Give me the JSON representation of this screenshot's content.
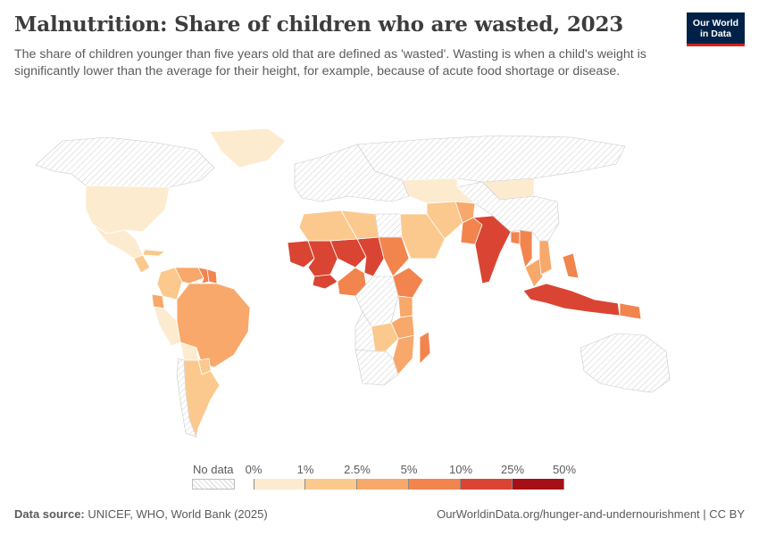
{
  "header": {
    "title": "Malnutrition: Share of children who are wasted, 2023",
    "subtitle": "The share of children younger than five years old that are defined as 'wasted'. Wasting is when a child's weight is significantly lower than the average for their height, for example, because of acute food shortage or disease.",
    "logo_line1": "Our World",
    "logo_line2": "in Data",
    "logo_color": "#002147",
    "logo_accent": "#ce261e"
  },
  "legend": {
    "no_data_label": "No data",
    "tick_labels": [
      "0%",
      "1%",
      "2.5%",
      "5%",
      "10%",
      "25%",
      "50%"
    ],
    "bin_colors": [
      "#fdebd0",
      "#fbc98d",
      "#f7a86a",
      "#f2844e",
      "#d94532",
      "#a50f15"
    ]
  },
  "footer": {
    "source_label": "Data source:",
    "source_text": " UNICEF, WHO, World Bank (2025)",
    "url_text": "OurWorldinData.org/hunger-and-undernourishment | CC BY"
  },
  "chart_data": {
    "type": "choropleth",
    "title": "Malnutrition: Share of children who are wasted, 2023",
    "year": 2023,
    "unit": "%",
    "scale_bins": [
      0,
      1,
      2.5,
      5,
      10,
      25,
      50
    ],
    "regions": [
      {
        "name": "Canada",
        "bin": null
      },
      {
        "name": "United States",
        "bin": 0
      },
      {
        "name": "Mexico",
        "bin": 0
      },
      {
        "name": "Greenland",
        "bin": 0
      },
      {
        "name": "Cuba",
        "bin": 1
      },
      {
        "name": "Guatemala",
        "bin": 1
      },
      {
        "name": "Colombia",
        "bin": 1
      },
      {
        "name": "Venezuela",
        "bin": 2
      },
      {
        "name": "Guyana",
        "bin": 3
      },
      {
        "name": "Suriname",
        "bin": 3
      },
      {
        "name": "Ecuador",
        "bin": 2
      },
      {
        "name": "Peru",
        "bin": 0
      },
      {
        "name": "Brazil",
        "bin": 2
      },
      {
        "name": "Bolivia",
        "bin": 0
      },
      {
        "name": "Paraguay",
        "bin": 1
      },
      {
        "name": "Argentina",
        "bin": 1
      },
      {
        "name": "Chile",
        "bin": null
      },
      {
        "name": "Mauritania",
        "bin": 4
      },
      {
        "name": "Mali",
        "bin": 4
      },
      {
        "name": "Niger",
        "bin": 4
      },
      {
        "name": "Chad",
        "bin": 4
      },
      {
        "name": "Burkina Faso",
        "bin": 4
      },
      {
        "name": "Nigeria",
        "bin": 3
      },
      {
        "name": "Algeria",
        "bin": 1
      },
      {
        "name": "Libya",
        "bin": 1
      },
      {
        "name": "Sudan",
        "bin": 3
      },
      {
        "name": "Egypt",
        "bin": null
      },
      {
        "name": "Ethiopia",
        "bin": 3
      },
      {
        "name": "Kenya",
        "bin": 2
      },
      {
        "name": "Tanzania",
        "bin": 2
      },
      {
        "name": "DR Congo",
        "bin": null
      },
      {
        "name": "Angola",
        "bin": null
      },
      {
        "name": "Mozambique",
        "bin": 2
      },
      {
        "name": "Zambia",
        "bin": 1
      },
      {
        "name": "South Africa",
        "bin": null
      },
      {
        "name": "Madagascar",
        "bin": 3
      },
      {
        "name": "Saudi Arabia",
        "bin": 1
      },
      {
        "name": "Iran",
        "bin": 1
      },
      {
        "name": "Afghanistan",
        "bin": 2
      },
      {
        "name": "Pakistan",
        "bin": 3
      },
      {
        "name": "India",
        "bin": 4
      },
      {
        "name": "Bangladesh",
        "bin": 3
      },
      {
        "name": "Myanmar",
        "bin": 3
      },
      {
        "name": "Thailand",
        "bin": 2
      },
      {
        "name": "Vietnam",
        "bin": 2
      },
      {
        "name": "Philippines",
        "bin": 3
      },
      {
        "name": "Indonesia",
        "bin": 4
      },
      {
        "name": "Papua New Guinea",
        "bin": 3
      },
      {
        "name": "Mongolia",
        "bin": 0
      },
      {
        "name": "China",
        "bin": null
      },
      {
        "name": "Russia",
        "bin": null
      },
      {
        "name": "Kazakhstan",
        "bin": 0
      },
      {
        "name": "Australia",
        "bin": null
      },
      {
        "name": "Europe",
        "bin": null
      }
    ]
  }
}
